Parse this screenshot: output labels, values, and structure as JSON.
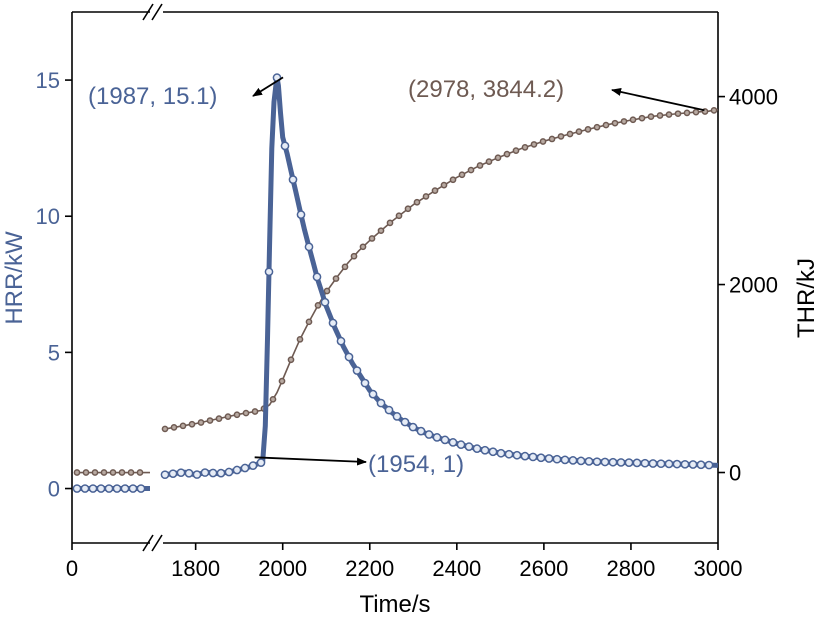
{
  "chart_data": {
    "type": "line",
    "xlabel": "Time/s",
    "ylabel_left": "HRR/kW",
    "ylabel_right": "THR/kJ",
    "x_tick_labels": [
      "0",
      "1800",
      "2000",
      "2200",
      "2400",
      "2600",
      "2800",
      "3000"
    ],
    "x_ticks_numeric": [
      1800,
      2000,
      2200,
      2400,
      2600,
      2800,
      3000
    ],
    "x_range_main": [
      1725,
      3000
    ],
    "x_axis_break": true,
    "y_left_range": [
      -2,
      17.5
    ],
    "y_left_ticks": [
      0,
      5,
      10,
      15
    ],
    "y_right_range": [
      -750,
      4900
    ],
    "y_right_ticks": [
      0,
      2000,
      4000
    ],
    "colors": {
      "hrr": "#4a6396",
      "thr": "#6e5a52",
      "axis": "#000000"
    },
    "series": [
      {
        "name": "HRR",
        "axis": "left",
        "initial_segment_value": 0,
        "x": [
          1725,
          1750,
          1775,
          1800,
          1825,
          1850,
          1875,
          1900,
          1925,
          1950,
          1954,
          1960,
          1965,
          1970,
          1975,
          1980,
          1985,
          1987,
          1990,
          1995,
          2000,
          2010,
          2020,
          2030,
          2040,
          2050,
          2060,
          2070,
          2080,
          2090,
          2100,
          2120,
          2140,
          2160,
          2180,
          2200,
          2225,
          2250,
          2275,
          2300,
          2325,
          2350,
          2400,
          2450,
          2500,
          2550,
          2600,
          2650,
          2700,
          2750,
          2800,
          2850,
          2900,
          2950,
          3000
        ],
        "y": [
          0.5,
          0.55,
          0.6,
          0.5,
          0.6,
          0.55,
          0.6,
          0.7,
          0.8,
          0.95,
          1.0,
          2.3,
          5.5,
          9.0,
          12.5,
          14.2,
          14.9,
          15.1,
          14.8,
          13.8,
          12.9,
          12.3,
          11.6,
          10.9,
          10.2,
          9.5,
          8.9,
          8.3,
          7.7,
          7.2,
          6.7,
          5.9,
          5.2,
          4.6,
          4.1,
          3.6,
          3.15,
          2.8,
          2.5,
          2.25,
          2.05,
          1.9,
          1.65,
          1.45,
          1.3,
          1.2,
          1.12,
          1.05,
          1.0,
          0.97,
          0.95,
          0.92,
          0.9,
          0.88,
          0.85
        ]
      },
      {
        "name": "THR",
        "axis": "right",
        "initial_segment_value": 0,
        "x": [
          1725,
          1750,
          1800,
          1850,
          1900,
          1950,
          1954,
          1970,
          1987,
          2000,
          2020,
          2040,
          2060,
          2080,
          2100,
          2125,
          2150,
          2175,
          2200,
          2250,
          2300,
          2350,
          2400,
          2450,
          2500,
          2550,
          2600,
          2650,
          2700,
          2750,
          2800,
          2850,
          2900,
          2950,
          2978,
          3000
        ],
        "y": [
          460,
          480,
          520,
          570,
          620,
          660,
          670,
          720,
          850,
          990,
          1210,
          1420,
          1600,
          1770,
          1920,
          2080,
          2230,
          2360,
          2470,
          2670,
          2850,
          3000,
          3140,
          3260,
          3360,
          3450,
          3525,
          3590,
          3650,
          3705,
          3750,
          3790,
          3815,
          3835,
          3844.2,
          3860
        ]
      }
    ],
    "annotations": [
      {
        "text": "(1987, 15.1)",
        "x": 1987,
        "y": 15.1,
        "axis": "left"
      },
      {
        "text": "(2978, 3844.2)",
        "x": 2978,
        "y": 3844.2,
        "axis": "right"
      },
      {
        "text": "(1954, 1)",
        "x": 1954,
        "y": 1,
        "axis": "left"
      }
    ]
  }
}
